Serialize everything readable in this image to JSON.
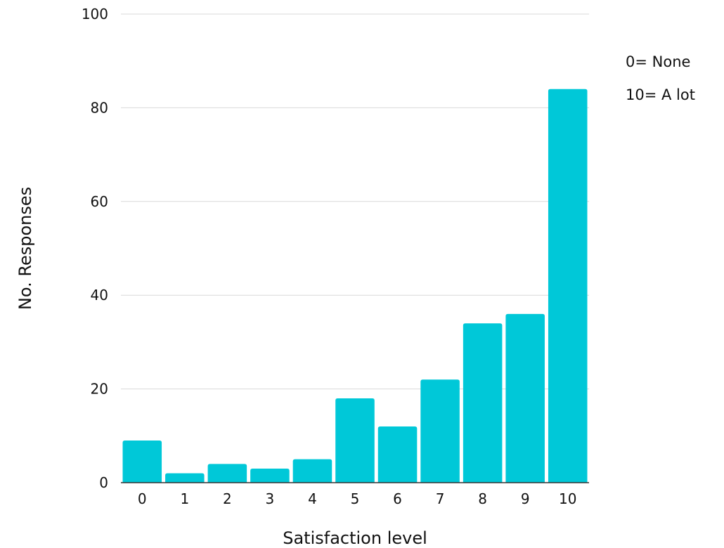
{
  "chart_data": {
    "type": "bar",
    "categories": [
      "0",
      "1",
      "2",
      "3",
      "4",
      "5",
      "6",
      "7",
      "8",
      "9",
      "10"
    ],
    "values": [
      9,
      2,
      4,
      3,
      5,
      18,
      12,
      22,
      34,
      36,
      84
    ],
    "xlabel": "Satisfaction level",
    "ylabel": "No. Responses",
    "ylim": [
      0,
      100
    ],
    "yticks": [
      0,
      20,
      40,
      60,
      80,
      100
    ],
    "grid": true,
    "legend": null,
    "annotations": [
      "0= None",
      "10= A lot"
    ],
    "colors": {
      "bar": "#00c8d8",
      "grid": "#d9d9d9",
      "baseline": "#333333",
      "text": "#111111"
    }
  }
}
